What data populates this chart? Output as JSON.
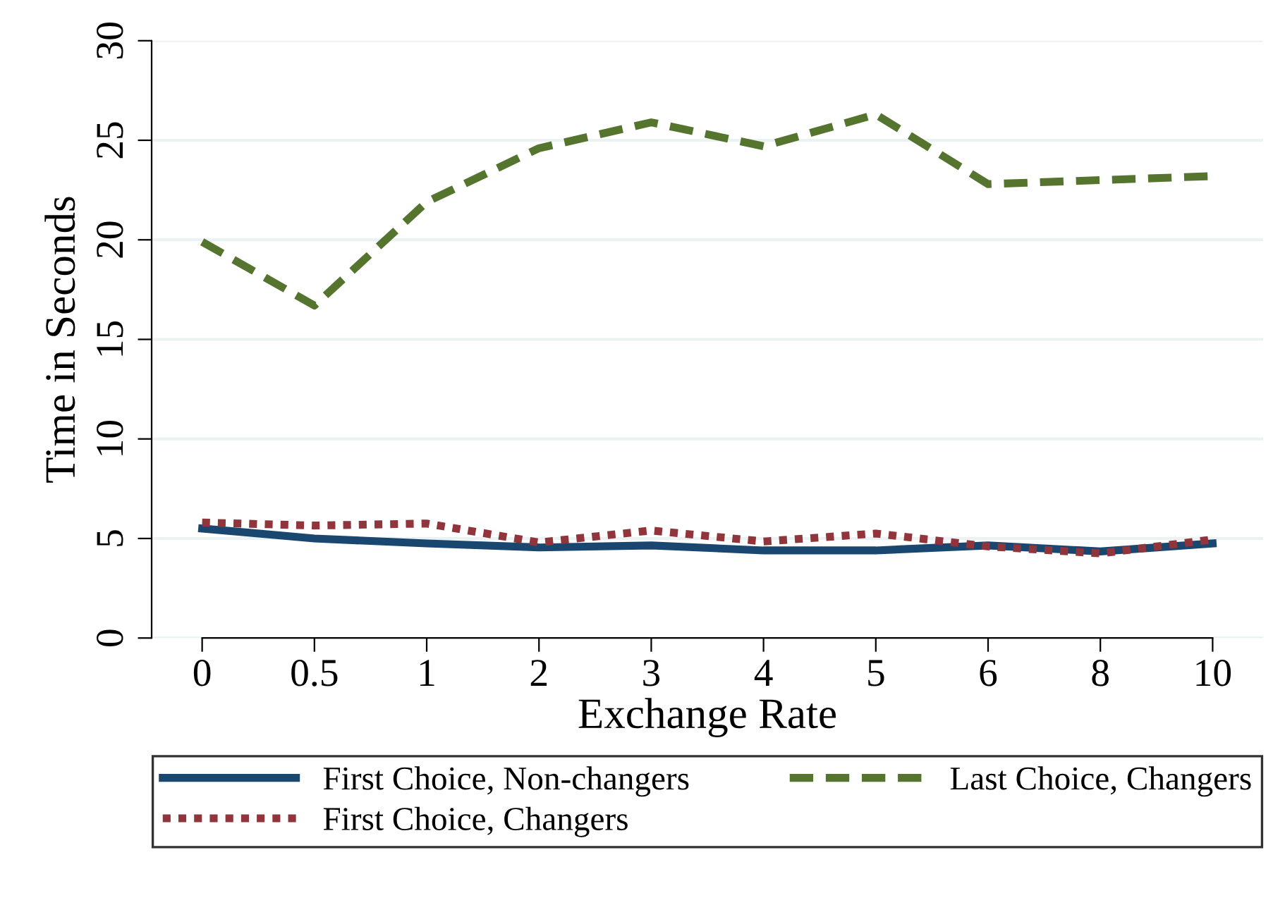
{
  "chart_data": {
    "type": "line",
    "xlabel": "Exchange Rate",
    "ylabel": "Time in Seconds",
    "categories": [
      "0",
      "0.5",
      "1",
      "2",
      "3",
      "4",
      "5",
      "6",
      "8",
      "10"
    ],
    "ylim": [
      0,
      30
    ],
    "yticks": [
      0,
      5,
      10,
      15,
      20,
      25,
      30
    ],
    "grid": "y",
    "legend": "bottom",
    "series": [
      {
        "name": "First Choice, Non-changers",
        "color": "#1a476f",
        "line_style": "solid",
        "values": [
          5.5,
          5.0,
          4.75,
          4.55,
          4.65,
          4.4,
          4.4,
          4.65,
          4.35,
          4.75
        ]
      },
      {
        "name": "First Choice, Changers",
        "color": "#90353b",
        "line_style": "dotted",
        "values": [
          5.8,
          5.65,
          5.75,
          4.8,
          5.4,
          4.85,
          5.25,
          4.6,
          4.25,
          4.95
        ]
      },
      {
        "name": "Last Choice, Changers",
        "color": "#55752f",
        "line_style": "dashed",
        "values": [
          19.9,
          16.7,
          21.9,
          24.6,
          25.9,
          24.7,
          26.3,
          22.8,
          23.0,
          23.2
        ]
      }
    ]
  }
}
